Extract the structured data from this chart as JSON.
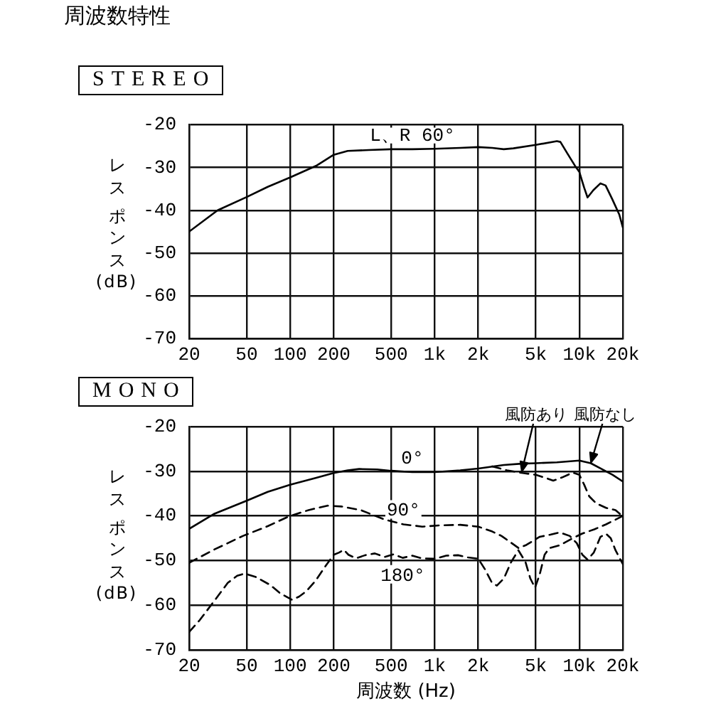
{
  "chart_data": [
    {
      "type": "line",
      "title": "周波数特性",
      "subtitle": "STEREO",
      "ylabel": "レスポンス (dB)",
      "series": [
        {
          "name": "L、R 60°",
          "color": "#000000",
          "line_style": "solid",
          "x": [
            20,
            31.5,
            50,
            70,
            100,
            151,
            200,
            250,
            350,
            500,
            700,
            1000,
            1500,
            2000,
            2500,
            3000,
            3500,
            5000,
            7000,
            7400,
            8300,
            9300,
            10000,
            10800,
            11400,
            12500,
            14000,
            15200,
            16900,
            18900,
            20000
          ],
          "values": [
            -45,
            -40,
            -36.9,
            -34.5,
            -32.3,
            -29.6,
            -27,
            -26.1,
            -25.9,
            -25.7,
            -25.7,
            -25.6,
            -25.4,
            -25.2,
            -25.4,
            -25.7,
            -25.5,
            -24.7,
            -23.8,
            -24,
            -26.8,
            -29.5,
            -31,
            -34.7,
            -37,
            -35.3,
            -33.7,
            -34.2,
            -37.4,
            -41,
            -44
          ]
        }
      ],
      "xlim": [
        20,
        20000
      ],
      "ylim": [
        -70,
        -20
      ],
      "xticks": [
        20,
        50,
        100,
        200,
        500,
        {
          "value": 1000,
          "label": "1k"
        },
        {
          "value": 2000,
          "label": "2k"
        },
        {
          "value": 5000,
          "label": "5k"
        },
        {
          "value": 10000,
          "label": "10k"
        },
        {
          "value": 20000,
          "label": "20k"
        }
      ],
      "yticks": [
        -70,
        -60,
        -50,
        -40,
        -30,
        -20
      ],
      "log": "x",
      "grid": true,
      "legend": false,
      "marker": "none"
    },
    {
      "type": "line",
      "subtitle": "MONO",
      "xlabel": "周波数 (Hz)",
      "ylabel": "レスポンス (dB)",
      "series": [
        {
          "name": "0°",
          "color": "#000000",
          "line_style": "solid",
          "x": [
            20,
            30,
            50,
            70,
            100,
            150,
            200,
            250,
            300,
            400,
            500,
            700,
            1000,
            1500,
            2000,
            3000,
            4000,
            5000,
            7000,
            10000,
            12000,
            14500,
            17000,
            20000
          ],
          "values": [
            -42.9,
            -39.5,
            -36.6,
            -34.6,
            -33,
            -31.5,
            -30.4,
            -29.8,
            -29.5,
            -29.6,
            -29.9,
            -30.2,
            -30.2,
            -29.8,
            -29.4,
            -28.6,
            -28.3,
            -28.2,
            -28,
            -27.6,
            -28.2,
            -29.6,
            -30.8,
            -32.3
          ]
        },
        {
          "color": "#000000",
          "line_style": "dashed",
          "x": [
            2500,
            3160,
            4060,
            5000,
            5740,
            6600,
            7580,
            9030,
            10000,
            10800,
            11700,
            13100,
            15300,
            17800,
            20000
          ],
          "values": [
            -28.9,
            -29.8,
            -30.4,
            -30.8,
            -31.4,
            -32.1,
            -31.4,
            -30.3,
            -30.8,
            -33,
            -35.6,
            -37.2,
            -38.2,
            -38.7,
            -40.1
          ]
        },
        {
          "name": "90°",
          "color": "#000000",
          "line_style": "dashed",
          "x": [
            20,
            30,
            47,
            70,
            98,
            134,
            181,
            227,
            308,
            449,
            607,
            820,
            1110,
            1500,
            2000,
            2500,
            2900,
            3800,
            4300,
            5300,
            6300,
            7300,
            8600,
            9600,
            10500,
            11400,
            12600,
            14000,
            15300,
            16500,
            17800,
            20000
          ],
          "values": [
            -50.5,
            -47.5,
            -44.5,
            -42.3,
            -40.1,
            -38.7,
            -37.7,
            -37.9,
            -38.7,
            -40.8,
            -41.9,
            -42.4,
            -42.1,
            -42,
            -42.4,
            -43.5,
            -44.5,
            -47.2,
            -46.5,
            -44.7,
            -44.2,
            -43.7,
            -44.5,
            -46.1,
            -48.7,
            -49.8,
            -48.2,
            -44.7,
            -44,
            -45,
            -47.7,
            -50.8
          ]
        },
        {
          "name": "180°",
          "color": "#000000",
          "line_style": "dashed",
          "x": [
            20,
            23.6,
            29.6,
            37,
            43,
            48.5,
            58,
            73,
            85,
            103,
            115,
            129,
            150,
            175,
            200,
            218,
            235,
            253,
            285,
            330,
            385,
            450,
            520,
            600,
            700,
            815,
            1000,
            1200,
            1450,
            1700,
            2000,
            2220,
            2490,
            2690,
            3010,
            3380,
            3790,
            4240,
            4580,
            4940,
            5330,
            5750,
            6200,
            7300,
            9000,
            10400,
            12700,
            15300,
            20000
          ],
          "values": [
            -66,
            -63.4,
            -59.2,
            -55,
            -53.4,
            -52.9,
            -53.7,
            -55.5,
            -57.3,
            -58.8,
            -58.1,
            -56.9,
            -54.5,
            -51.3,
            -48.7,
            -48.2,
            -47.6,
            -48.7,
            -49.5,
            -48.8,
            -48.4,
            -49.2,
            -48.6,
            -49.4,
            -48.9,
            -49.5,
            -49.6,
            -48.9,
            -48.8,
            -49.3,
            -49.6,
            -51.9,
            -55,
            -55.6,
            -54,
            -50.3,
            -47.7,
            -50.3,
            -54,
            -56.1,
            -53,
            -48.7,
            -47.2,
            -46.6,
            -45,
            -44,
            -43,
            -41.9,
            -40
          ]
        }
      ],
      "annotations": [
        {
          "text": "風防あり",
          "x": 4000,
          "y": -30
        },
        {
          "text": "風防なし",
          "x": 12000,
          "y": -28
        }
      ],
      "xlim": [
        20,
        20000
      ],
      "ylim": [
        -70,
        -20
      ],
      "xticks": [
        20,
        50,
        100,
        200,
        500,
        {
          "value": 1000,
          "label": "1k"
        },
        {
          "value": 2000,
          "label": "2k"
        },
        {
          "value": 5000,
          "label": "5k"
        },
        {
          "value": 10000,
          "label": "10k"
        },
        {
          "value": 20000,
          "label": "20k"
        }
      ],
      "yticks": [
        -70,
        -60,
        -50,
        -40,
        -30,
        -20
      ],
      "log": "x",
      "grid": true,
      "legend": false,
      "marker": "none"
    }
  ]
}
